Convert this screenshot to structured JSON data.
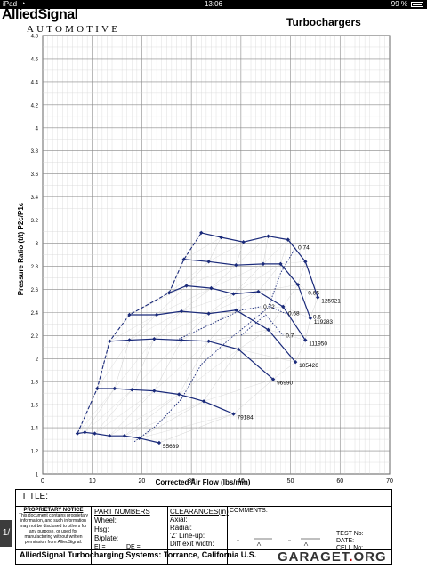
{
  "status_bar": {
    "carrier": "iPad",
    "wifi_icon": "wifi-icon",
    "time": "13:06",
    "battery": "99 %"
  },
  "header": {
    "brand": "AlliedSignal",
    "brand_sub": "AUTOMOTIVE",
    "title": "Turbochargers"
  },
  "chart_data": {
    "type": "line",
    "title": "",
    "xlabel": "Corrected Air Flow (lbs/min)",
    "ylabel": "Pressure Ratio (t/t) P2c/P1c",
    "xlim": [
      0,
      70
    ],
    "ylim": [
      1.0,
      4.8
    ],
    "x_ticks": [
      "0",
      "10",
      "20",
      "30",
      "40",
      "50",
      "60",
      "70"
    ],
    "y_ticks": [
      "1",
      "1.2",
      "1.4",
      "1.6",
      "1.8",
      "2",
      "2.2",
      "2.4",
      "2.6",
      "2.8",
      "3",
      "3.2",
      "3.4",
      "3.6",
      "3.8",
      "4",
      "4.2",
      "4.4",
      "4.6",
      "4.8"
    ],
    "grid": true,
    "series": [
      {
        "name": "55639",
        "points": [
          [
            7.0,
            1.35
          ],
          [
            8.5,
            1.36
          ],
          [
            10.5,
            1.35
          ],
          [
            13.5,
            1.33
          ],
          [
            16.5,
            1.33
          ],
          [
            19.5,
            1.31
          ],
          [
            23.5,
            1.27
          ]
        ]
      },
      {
        "name": "79184",
        "points": [
          [
            11.0,
            1.74
          ],
          [
            14.5,
            1.74
          ],
          [
            18.0,
            1.73
          ],
          [
            22.5,
            1.72
          ],
          [
            27.5,
            1.69
          ],
          [
            32.5,
            1.63
          ],
          [
            38.5,
            1.52
          ]
        ]
      },
      {
        "name": "96990",
        "points": [
          [
            13.5,
            2.15
          ],
          [
            17.5,
            2.16
          ],
          [
            22.5,
            2.17
          ],
          [
            28.0,
            2.16
          ],
          [
            33.5,
            2.15
          ],
          [
            39.5,
            2.08
          ],
          [
            46.5,
            1.82
          ]
        ]
      },
      {
        "name": "105426",
        "points": [
          [
            17.5,
            2.38
          ],
          [
            23.0,
            2.38
          ],
          [
            28.0,
            2.41
          ],
          [
            33.5,
            2.39
          ],
          [
            39.0,
            2.42
          ],
          [
            45.5,
            2.25
          ],
          [
            51.0,
            1.97
          ]
        ]
      },
      {
        "name": "111950",
        "points": [
          [
            25.5,
            2.57
          ],
          [
            29.0,
            2.63
          ],
          [
            34.0,
            2.61
          ],
          [
            38.5,
            2.56
          ],
          [
            43.5,
            2.58
          ],
          [
            48.5,
            2.45
          ],
          [
            53.0,
            2.16
          ]
        ]
      },
      {
        "name": "119283",
        "points": [
          [
            28.5,
            2.86
          ],
          [
            33.5,
            2.84
          ],
          [
            39.0,
            2.81
          ],
          [
            44.5,
            2.82
          ],
          [
            48.0,
            2.82
          ],
          [
            51.5,
            2.64
          ],
          [
            54.0,
            2.35
          ]
        ]
      },
      {
        "name": "125921",
        "points": [
          [
            32.0,
            3.09
          ],
          [
            36.0,
            3.05
          ],
          [
            40.5,
            3.01
          ],
          [
            45.5,
            3.06
          ],
          [
            49.5,
            3.03
          ],
          [
            53.0,
            2.84
          ],
          [
            55.5,
            2.53
          ]
        ]
      }
    ],
    "surge_line": [
      [
        7.0,
        1.35
      ],
      [
        11.0,
        1.74
      ],
      [
        13.5,
        2.15
      ],
      [
        17.5,
        2.38
      ],
      [
        25.5,
        2.57
      ],
      [
        28.5,
        2.86
      ],
      [
        32.0,
        3.09
      ]
    ],
    "efficiency_islands": [
      {
        "label": "0.74",
        "points": [
          [
            18.5,
            1.28
          ],
          [
            23.0,
            1.42
          ],
          [
            28.0,
            1.65
          ],
          [
            32.0,
            1.95
          ],
          [
            38.0,
            2.18
          ],
          [
            45.5,
            2.44
          ],
          [
            48.0,
            2.74
          ],
          [
            51.0,
            2.96
          ]
        ]
      },
      {
        "label": "0.72",
        "points": [
          [
            27.0,
            2.16
          ],
          [
            34.0,
            2.3
          ],
          [
            40.0,
            2.42
          ],
          [
            44.0,
            2.45
          ]
        ]
      },
      {
        "label": "0.7",
        "points": [
          [
            40.0,
            2.2
          ],
          [
            45.0,
            2.38
          ],
          [
            48.5,
            2.2
          ]
        ]
      },
      {
        "label": "0.68",
        "points": [
          [
            46.0,
            2.45
          ],
          [
            49.0,
            2.39
          ]
        ]
      },
      {
        "label": "0.6",
        "points": [
          [
            54.0,
            2.36
          ]
        ]
      },
      {
        "label": "0.65",
        "points": [
          [
            53.0,
            2.57
          ]
        ]
      }
    ]
  },
  "form": {
    "title_label": "TITLE:",
    "notice_title": "PROPRIETARY NOTICE",
    "notice_text": "This document contains proprietary information, and such information may not be disclosed to others for any purpose, or used for manufacturing without written permission from AlliedSignal.",
    "part_numbers_label": "PART NUMBERS",
    "wheel_label": "Wheel:",
    "hsg_label": "Hsg:",
    "bplate_label": "B/plate:",
    "ei_label": "EI =",
    "de_label": "DE =",
    "clearances_label": "CLEARANCES(in)",
    "axial_label": "Axial:",
    "radial_label": "Radial:",
    "zlineup_label": "'Z' Line-up:",
    "diff_exit_label": "Diff exit width:",
    "comments_label": "COMMENTS:",
    "test_no_label": "TEST No:",
    "date_label": "DATE:",
    "cell_no_label": "CELL No:",
    "footer": "AlliedSignal Turbocharging Systems: Torrance, California U.S."
  },
  "pager": "1/",
  "watermark": "GARAGET.ORG"
}
